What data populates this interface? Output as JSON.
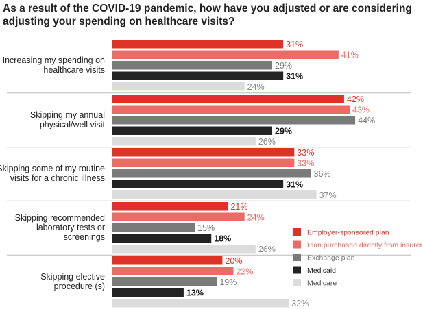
{
  "chart_data": {
    "type": "bar",
    "orientation": "horizontal",
    "title": "As a result of the COVID-19 pandemic, how have you adjusted or are considering adjusting your spending on healthcare visits?",
    "value_suffix": "%",
    "xlim": [
      0,
      50
    ],
    "grid": false,
    "legend_position": "bottom-right",
    "categories": [
      [
        "Increasing my spending on",
        "healthcare visits"
      ],
      [
        "Skipping my annual",
        "physical/well visit"
      ],
      [
        "Skipping some of my routine",
        "visits for a chronic illness"
      ],
      [
        "Skipping recommended",
        "laboratory tests or",
        "screenings"
      ],
      [
        "Skipping elective",
        "procedure (s)"
      ]
    ],
    "series": [
      {
        "name": "Employer-sponsored plan",
        "color": "#e03127",
        "label_color": "#e03127",
        "label_weight": "normal",
        "values": [
          31,
          42,
          33,
          21,
          20
        ]
      },
      {
        "name": "Plan purchased directly from insurer",
        "color": "#ec6b64",
        "label_color": "#ec6b64",
        "label_weight": "normal",
        "values": [
          41,
          43,
          33,
          24,
          22
        ]
      },
      {
        "name": "Exchange plan",
        "color": "#7a7a7a",
        "label_color": "#7a7a7a",
        "label_weight": "normal",
        "values": [
          29,
          44,
          36,
          15,
          19
        ]
      },
      {
        "name": "Medicaid",
        "color": "#232323",
        "label_color": "#111111",
        "label_weight": "bold",
        "values": [
          31,
          29,
          31,
          18,
          13
        ]
      },
      {
        "name": "Medicare",
        "color": "#dcdcdc",
        "label_color": "#8a8a8a",
        "label_weight": "normal",
        "values": [
          24,
          26,
          37,
          26,
          32
        ]
      }
    ]
  }
}
